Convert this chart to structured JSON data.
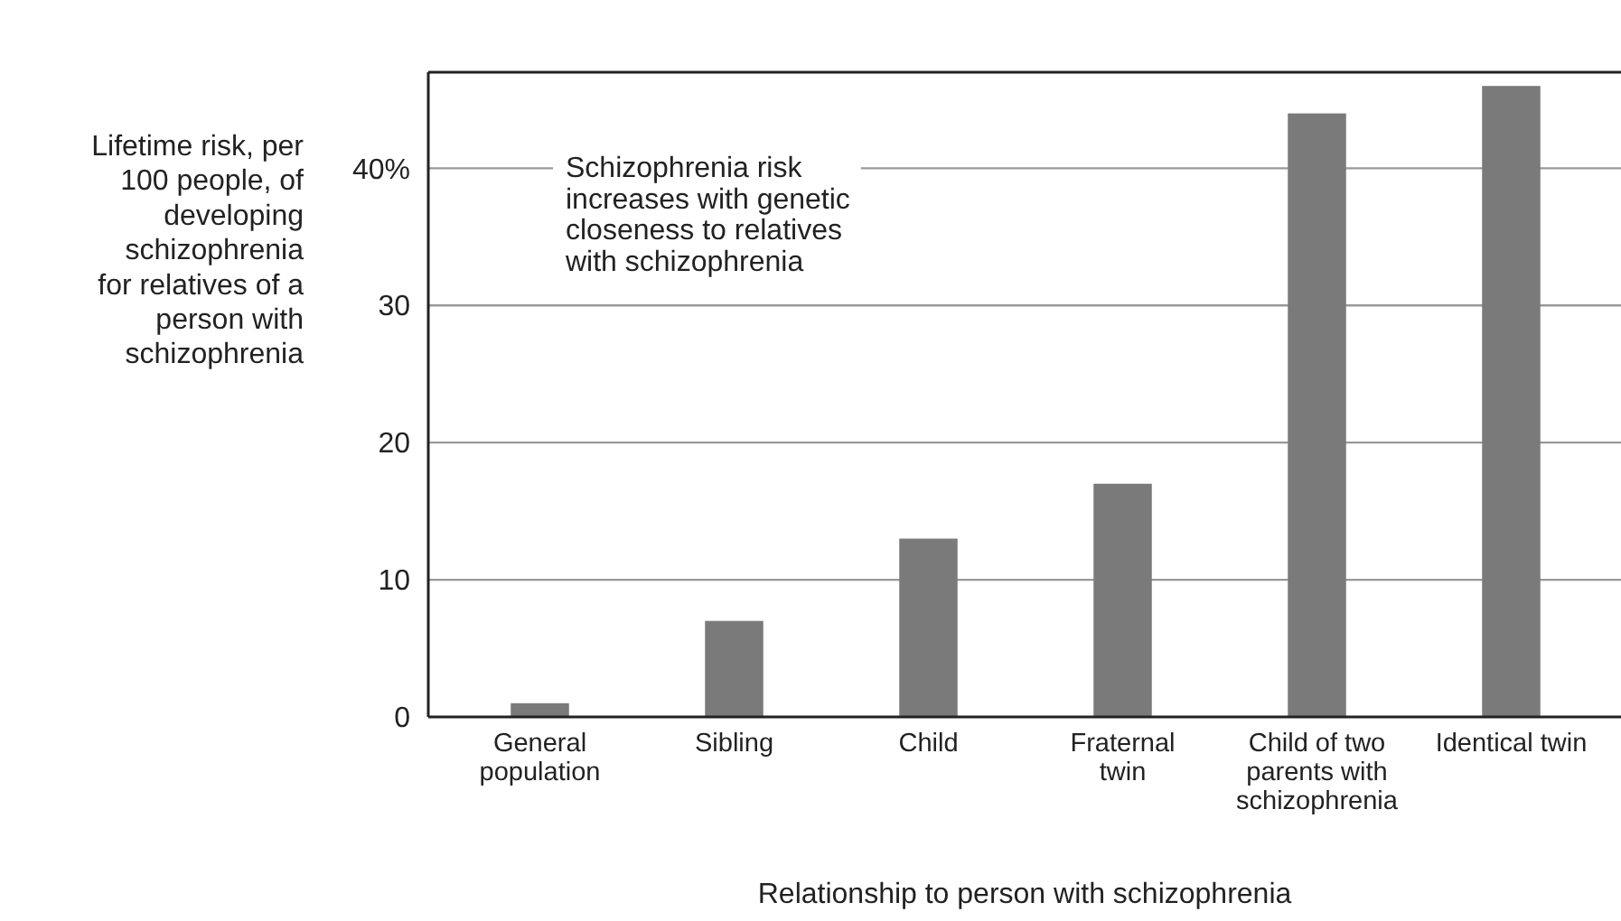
{
  "chart_data": {
    "type": "bar",
    "ylabel": "Lifetime risk, per 100 people, of developing schizophrenia for relatives of a person with schizophrenia",
    "xlabel": "Relationship to person with schizophrenia",
    "categories": [
      "General population",
      "Sibling",
      "Child",
      "Fraternal twin",
      "Child of two parents with schizophrenia",
      "Identical twin"
    ],
    "values": [
      1,
      7,
      13,
      17,
      44,
      46
    ],
    "color": "#7a7a7a",
    "ylim": [
      0,
      47
    ],
    "yticks": [
      0,
      10,
      20,
      30,
      {
        "value": 40,
        "label": "40%"
      }
    ],
    "grid": "y",
    "annotations": [
      "Schizophrenia risk increases with genetic closeness to relatives with schizophrenia"
    ]
  }
}
